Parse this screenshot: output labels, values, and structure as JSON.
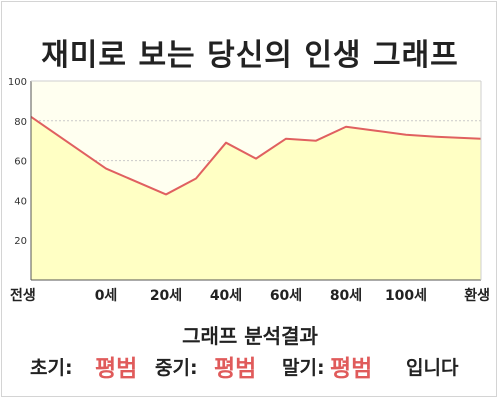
{
  "title": "재미로 보는 당신의 인생 그래프",
  "chart_data": {
    "type": "area",
    "x": [
      -25,
      0,
      20,
      30,
      40,
      50,
      60,
      70,
      80,
      90,
      100,
      110,
      125
    ],
    "values": [
      82,
      56,
      43,
      51,
      69,
      61,
      71,
      70,
      77,
      75,
      73,
      72,
      71
    ],
    "xticks": [
      {
        "value": -25,
        "label": "전생"
      },
      {
        "value": 0,
        "label": "0세"
      },
      {
        "value": 20,
        "label": "20세"
      },
      {
        "value": 40,
        "label": "40세"
      },
      {
        "value": 60,
        "label": "60세"
      },
      {
        "value": 80,
        "label": "80세"
      },
      {
        "value": 100,
        "label": "100세"
      },
      {
        "value": 125,
        "label": "환생"
      }
    ],
    "yticks": [
      20,
      40,
      60,
      80,
      100
    ],
    "xlim": [
      -25,
      125
    ],
    "ylim": [
      0,
      100
    ],
    "grid": true,
    "line_color": "#e06060",
    "fill_color": "#ffffc4",
    "background_color": "#fffff0"
  },
  "result": {
    "heading": "그래프 분석결과",
    "early_label": "초기:",
    "early_value": "평범",
    "middle_label": "중기:",
    "middle_value": "평범",
    "late_label": "말기:",
    "late_value": "평범",
    "suffix": "입니다"
  }
}
